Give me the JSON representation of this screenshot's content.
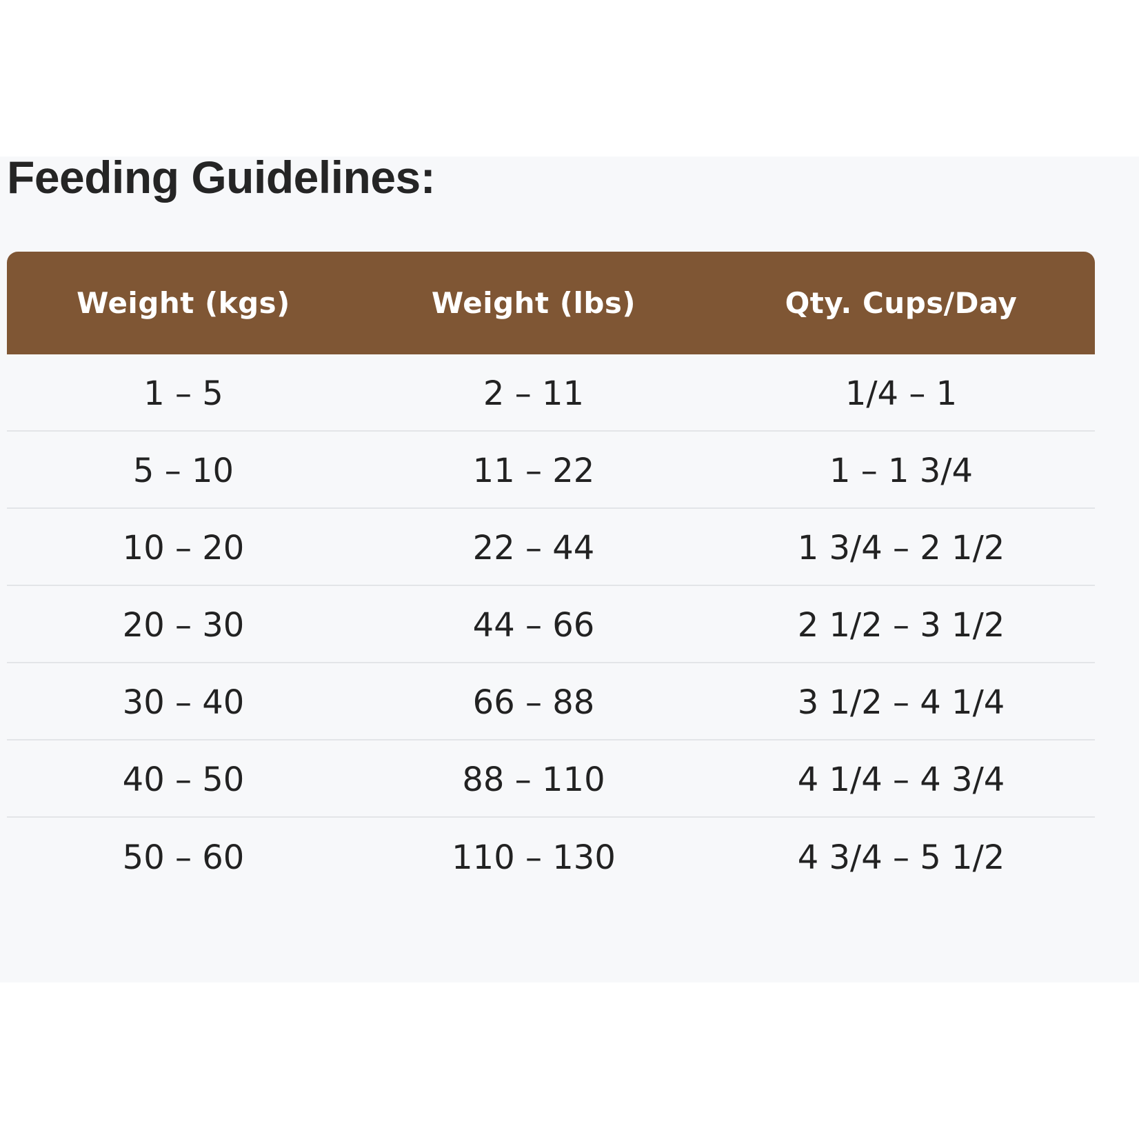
{
  "section": {
    "title": "Feeding Guidelines:"
  },
  "table": {
    "header_color": "#7f5634",
    "headers": [
      "Weight (kgs)",
      "Weight (lbs)",
      "Qty. Cups/Day"
    ],
    "rows": [
      [
        "1 – 5",
        "2 – 11",
        "1/4 – 1"
      ],
      [
        "5 – 10",
        "11 – 22",
        "1 – 1 3/4"
      ],
      [
        "10 – 20",
        "22 – 44",
        "1 3/4 – 2 1/2"
      ],
      [
        "20 – 30",
        "44 – 66",
        "2 1/2 – 3 1/2"
      ],
      [
        "30 – 40",
        "66 – 88",
        "3 1/2 – 4 1/4"
      ],
      [
        "40 – 50",
        "88 – 110",
        "4 1/4 – 4 3/4"
      ],
      [
        "50 – 60",
        "110 – 130",
        "4 3/4 – 5 1/2"
      ]
    ]
  }
}
